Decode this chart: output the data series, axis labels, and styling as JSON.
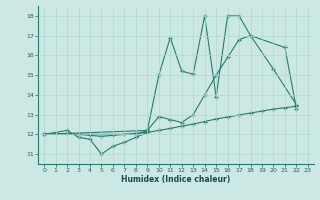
{
  "xlabel": "Humidex (Indice chaleur)",
  "bg_color": "#cce8e4",
  "grid_color": "#b0d8d0",
  "line_color": "#2a7a6a",
  "xlim": [
    -0.5,
    23.5
  ],
  "ylim": [
    10.5,
    18.5
  ],
  "xticks": [
    0,
    1,
    2,
    3,
    4,
    5,
    6,
    7,
    8,
    9,
    10,
    11,
    12,
    13,
    14,
    15,
    16,
    17,
    18,
    19,
    20,
    21,
    22,
    23
  ],
  "yticks": [
    11,
    12,
    13,
    14,
    15,
    16,
    17,
    18
  ],
  "series": [
    {
      "x": [
        0,
        2,
        3,
        4,
        5,
        6,
        7,
        8,
        9
      ],
      "y": [
        12.0,
        12.2,
        11.85,
        11.75,
        11.0,
        11.4,
        11.6,
        11.85,
        12.1
      ]
    },
    {
      "x": [
        0,
        9,
        10,
        11,
        12,
        13,
        14,
        15,
        16,
        17,
        18,
        21,
        22
      ],
      "y": [
        12.0,
        12.2,
        15.0,
        16.9,
        15.2,
        15.05,
        18.0,
        13.9,
        18.0,
        18.0,
        17.0,
        16.4,
        13.3
      ]
    },
    {
      "x": [
        0,
        8,
        9,
        10,
        11,
        12,
        13,
        14,
        15,
        16,
        17,
        18,
        20,
        22
      ],
      "y": [
        12.0,
        12.0,
        12.2,
        12.9,
        12.75,
        12.6,
        13.0,
        14.0,
        15.0,
        15.9,
        16.8,
        17.0,
        15.3,
        13.5
      ]
    },
    {
      "x": [
        0,
        2,
        3,
        4,
        5,
        6,
        7,
        8,
        9,
        10,
        11,
        12,
        13,
        14,
        15,
        16,
        17,
        18,
        19,
        20,
        21,
        22
      ],
      "y": [
        12.0,
        12.05,
        12.0,
        11.95,
        11.9,
        11.95,
        12.0,
        12.05,
        12.1,
        12.2,
        12.3,
        12.42,
        12.52,
        12.65,
        12.78,
        12.88,
        12.98,
        13.08,
        13.18,
        13.28,
        13.35,
        13.42
      ]
    }
  ]
}
